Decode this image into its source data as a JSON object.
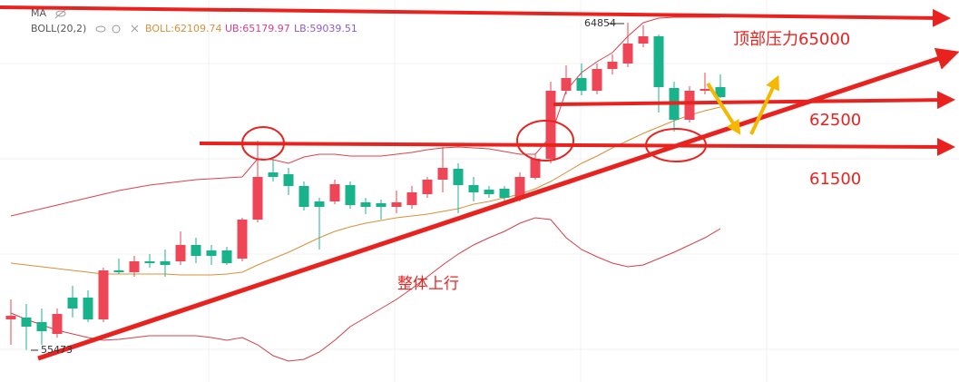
{
  "chart_data": {
    "type": "candlestick",
    "header": {
      "ma": "MA",
      "boll": "BOLL(20,2)",
      "mid": "BOLL:62109.74",
      "ub": "UB:65179.97",
      "lb": "LB:59039.51"
    },
    "ylim": [
      54554,
      65500
    ],
    "up_color": "#ee4656",
    "down_color": "#18b38b",
    "open": [
      56348,
      56400,
      56270,
      55932,
      56972,
      56972,
      56348,
      57752,
      57700,
      58012,
      58012,
      58012,
      58480,
      58324,
      58324,
      58090,
      59208,
      60560,
      60508,
      60170,
      59728,
      59728,
      60196,
      59702,
      59676,
      59572,
      59624,
      59936,
      60352,
      60664,
      60196,
      60066,
      60092,
      59832,
      60404,
      60950,
      62900,
      63264,
      62900,
      63524,
      63680,
      64252,
      64460,
      62978,
      62068,
      62900,
      63004
    ],
    "close": [
      56452,
      56140,
      56010,
      56504,
      56660,
      56348,
      57752,
      57700,
      58012,
      57960,
      57908,
      58480,
      58168,
      58168,
      57960,
      59208,
      60430,
      60430,
      60170,
      59572,
      59572,
      60222,
      59624,
      59572,
      59572,
      59702,
      59988,
      60352,
      60690,
      60196,
      59988,
      59936,
      59832,
      60430,
      60950,
      62900,
      63264,
      62900,
      63524,
      63732,
      64252,
      64460,
      63004,
      62068,
      62900,
      62952,
      62718
    ],
    "high": [
      56920,
      56790,
      56660,
      56660,
      57310,
      57180,
      57830,
      58090,
      58168,
      58220,
      58350,
      58870,
      58688,
      58480,
      58428,
      59260,
      61470,
      60950,
      60690,
      60300,
      59832,
      60352,
      60300,
      59832,
      59780,
      60040,
      60170,
      60430,
      61288,
      60820,
      60430,
      60170,
      60170,
      60560,
      61080,
      63160,
      63628,
      63680,
      63680,
      63940,
      64854,
      64772,
      64512,
      63160,
      63030,
      63420,
      63368
    ],
    "low": [
      55620,
      55473,
      55620,
      55828,
      56400,
      56270,
      56270,
      57648,
      57570,
      57830,
      57570,
      57908,
      57960,
      57908,
      57908,
      58012,
      59130,
      60300,
      59910,
      59468,
      58350,
      59650,
      59520,
      59364,
      59208,
      59390,
      59520,
      59832,
      59988,
      59390,
      59728,
      59832,
      59728,
      59728,
      60352,
      60820,
      62796,
      62770,
      62796,
      63368,
      63576,
      64148,
      62276,
      61730,
      61990,
      62796,
      62692
    ],
    "series": [
      {
        "color": "#e0404a",
        "values": [
          59312,
          59416,
          59520,
          59624,
          59728,
          59832,
          59936,
          60040,
          60118,
          60196,
          60248,
          60300,
          60352,
          60378,
          60404,
          60430,
          60950,
          60924,
          60820,
          61002,
          61080,
          61080,
          61028,
          61028,
          61028,
          61080,
          61132,
          61210,
          61262,
          61288,
          61262,
          61236,
          61158,
          61080,
          61080,
          61600,
          62900,
          63420,
          63732,
          63992,
          64460,
          64850,
          64980,
          65006,
          65006,
          65006,
          65006
        ]
      },
      {
        "color": "#d8903a",
        "values": [
          57960,
          57908,
          57856,
          57804,
          57752,
          57700,
          57648,
          57648,
          57648,
          57648,
          57648,
          57622,
          57622,
          57622,
          57648,
          57700,
          57908,
          58090,
          58272,
          58480,
          58688,
          58870,
          59000,
          59104,
          59182,
          59260,
          59312,
          59364,
          59442,
          59520,
          59650,
          59728,
          59832,
          59936,
          60092,
          60300,
          60560,
          60820,
          61028,
          61262,
          61470,
          61678,
          61860,
          62042,
          62198,
          62328,
          62432
        ]
      },
      {
        "color": "#d2404a",
        "values": [
          56530,
          56348,
          56192,
          56036,
          55932,
          55828,
          55750,
          55776,
          55828,
          55880,
          55880,
          55880,
          55880,
          55828,
          55750,
          55828,
          55620,
          55308,
          55152,
          55204,
          55412,
          55750,
          56140,
          56400,
          56660,
          56920,
          57232,
          57570,
          57908,
          58220,
          58480,
          58688,
          58870,
          59104,
          59260,
          59208,
          58688,
          58350,
          58142,
          57960,
          57856,
          57908,
          58090,
          58272,
          58480,
          58688,
          58948
        ]
      }
    ],
    "annotations": {
      "high": "64854",
      "low": "55473",
      "resistance": "顶部压力65000",
      "level1": "62500",
      "level2": "61500",
      "trend": "整体上行"
    }
  }
}
